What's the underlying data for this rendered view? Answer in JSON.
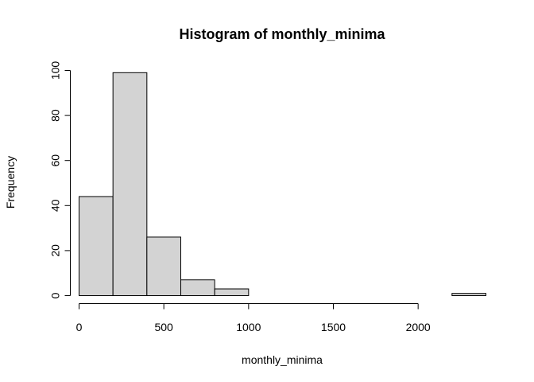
{
  "chart_data": {
    "type": "bar",
    "subtype": "histogram",
    "title": "Histogram of monthly_minima",
    "xlabel": "monthly_minima",
    "ylabel": "Frequency",
    "bins": [
      {
        "from": 0,
        "to": 200,
        "count": 44
      },
      {
        "from": 200,
        "to": 400,
        "count": 99
      },
      {
        "from": 400,
        "to": 600,
        "count": 26
      },
      {
        "from": 600,
        "to": 800,
        "count": 7
      },
      {
        "from": 800,
        "to": 1000,
        "count": 3
      },
      {
        "from": 1000,
        "to": 1200,
        "count": 0
      },
      {
        "from": 1200,
        "to": 1400,
        "count": 0
      },
      {
        "from": 1400,
        "to": 1600,
        "count": 0
      },
      {
        "from": 1600,
        "to": 1800,
        "count": 0
      },
      {
        "from": 1800,
        "to": 2000,
        "count": 0
      },
      {
        "from": 2000,
        "to": 2200,
        "count": 0
      },
      {
        "from": 2200,
        "to": 2400,
        "count": 1
      }
    ],
    "xticks": [
      0,
      500,
      1000,
      1500,
      2000
    ],
    "yticks": [
      0,
      20,
      40,
      60,
      80,
      100
    ],
    "xlim": [
      0,
      2400
    ],
    "ylim": [
      0,
      100
    ],
    "grid": false,
    "colors": {
      "bar_fill": "#d3d3d3",
      "bar_stroke": "#000000"
    }
  }
}
